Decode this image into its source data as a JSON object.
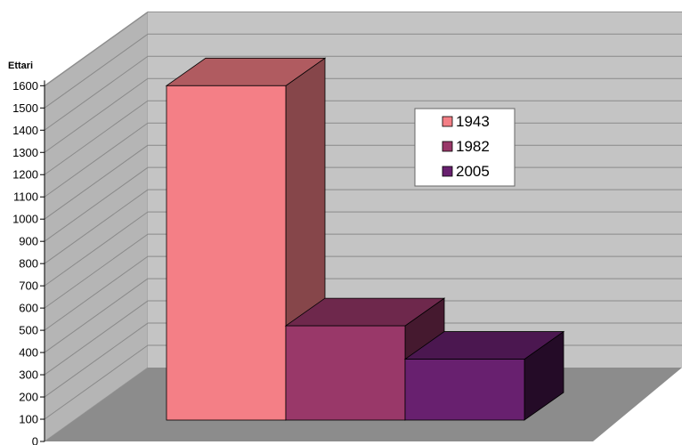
{
  "chart_data": {
    "type": "bar",
    "title": "",
    "xlabel": "",
    "ylabel": "Ettari",
    "ylim": [
      0,
      1600
    ],
    "yticks": [
      0,
      100,
      200,
      300,
      400,
      500,
      600,
      700,
      800,
      900,
      1000,
      1100,
      1200,
      1300,
      1400,
      1500,
      1600
    ],
    "grid": true,
    "legend_position": "top-right",
    "series": [
      {
        "name": "1943",
        "value": 1600,
        "color": "#f47f86"
      },
      {
        "name": "1982",
        "value": 520,
        "color": "#993869"
      },
      {
        "name": "2005",
        "value": 370,
        "color": "#68206f"
      }
    ],
    "colors": {
      "back_wall": "#c4c4c4",
      "side_wall": "#b5b5b5",
      "floor": "#8c8c8c",
      "gridline": "#8a8a8a",
      "legend_bg": "#ffffff"
    }
  }
}
